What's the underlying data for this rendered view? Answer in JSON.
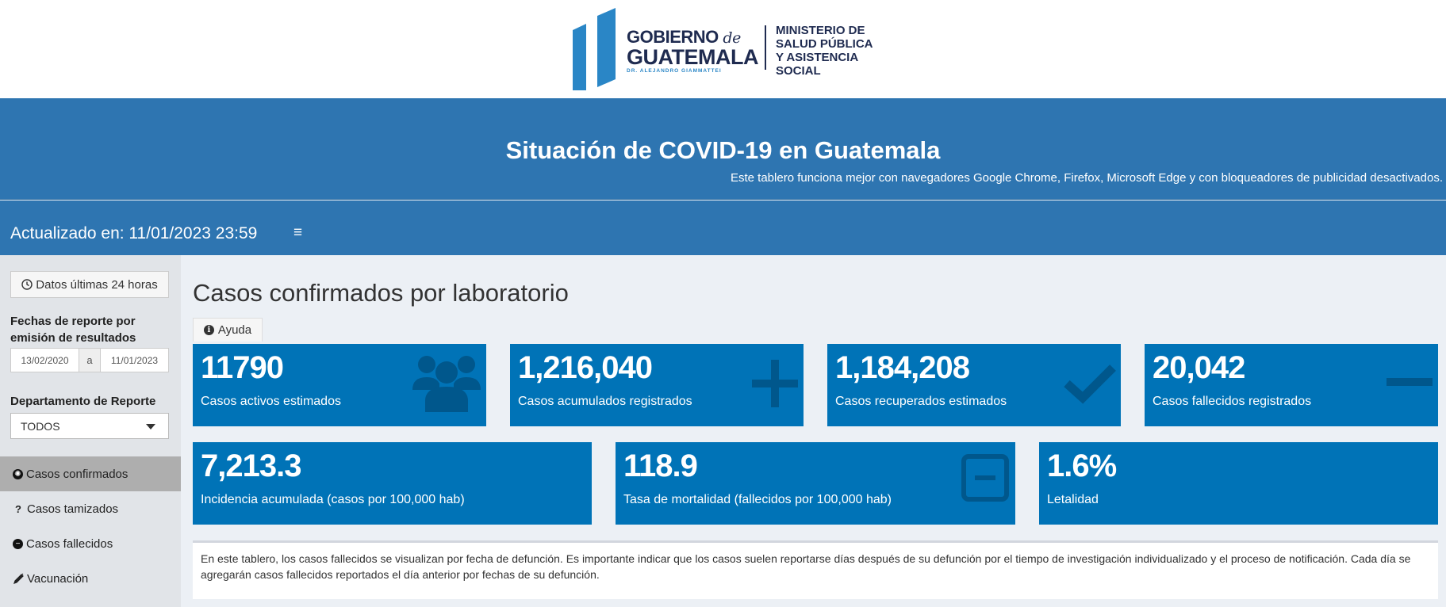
{
  "logo": {
    "gobierno": "GOBIERNO",
    "de": "de",
    "guatemala": "GUATEMALA",
    "president": "DR. ALEJANDRO GIAMMATTEI",
    "ministry_line1": "MINISTERIO DE",
    "ministry_line2": "SALUD PÚBLICA",
    "ministry_line3": "Y ASISTENCIA",
    "ministry_line4": "SOCIAL"
  },
  "header": {
    "title": "Situación de COVID-19 en Guatemala",
    "subtitle": "Este tablero funciona mejor con navegadores Google Chrome, Firefox, Microsoft Edge y con bloqueadores de publicidad desactivados.",
    "updated": "Actualizado en: 11/01/2023 23:59",
    "menu_icon": "≡"
  },
  "sidebar": {
    "btn_24h": "Datos últimas 24 horas",
    "dates_label": "Fechas de reporte por emisión de resultados",
    "date_from": "13/02/2020",
    "date_sep": "a",
    "date_to": "11/01/2023",
    "dept_label": "Departamento de Reporte",
    "dept_value": "TODOS",
    "nav": [
      {
        "label": "Casos confirmados",
        "icon": "virus-icon"
      },
      {
        "label": "Casos tamizados",
        "icon": "question-icon"
      },
      {
        "label": "Casos fallecidos",
        "icon": "minus-circle-icon"
      },
      {
        "label": "Vacunación",
        "icon": "syringe-icon"
      }
    ]
  },
  "main": {
    "title": "Casos confirmados por laboratorio",
    "help_label": "Ayuda",
    "boxes_row1": [
      {
        "value": "11790",
        "label": "Casos activos estimados",
        "icon": "users-icon"
      },
      {
        "value": "1,216,040",
        "label": "Casos acumulados registrados",
        "icon": "plus-icon"
      },
      {
        "value": "1,184,208",
        "label": "Casos recuperados estimados",
        "icon": "check-icon"
      },
      {
        "value": "20,042",
        "label": "Casos fallecidos registrados",
        "icon": "minus-icon"
      }
    ],
    "boxes_row2": [
      {
        "value": "7,213.3",
        "label": "Incidencia acumulada (casos por 100,000 hab)"
      },
      {
        "value": "118.9",
        "label": "Tasa de mortalidad (fallecidos por 100,000 hab)",
        "icon": "minus-square-icon"
      },
      {
        "value": "1.6%",
        "label": "Letalidad"
      }
    ],
    "note": "En este tablero, los casos fallecidos se visualizan por fecha de defunción. Es importante indicar que los casos suelen reportarse días después de su defunción por el tiempo de investigación individualizado y el proceso de notificación. Cada día se agregarán casos fallecidos reportados el día anterior por fechas de su defunción."
  },
  "colors": {
    "header_blue": "#2e75b1",
    "box_blue": "#0073b7",
    "logo_navy": "#1f2b50",
    "logo_light_blue": "#2a86c6"
  }
}
